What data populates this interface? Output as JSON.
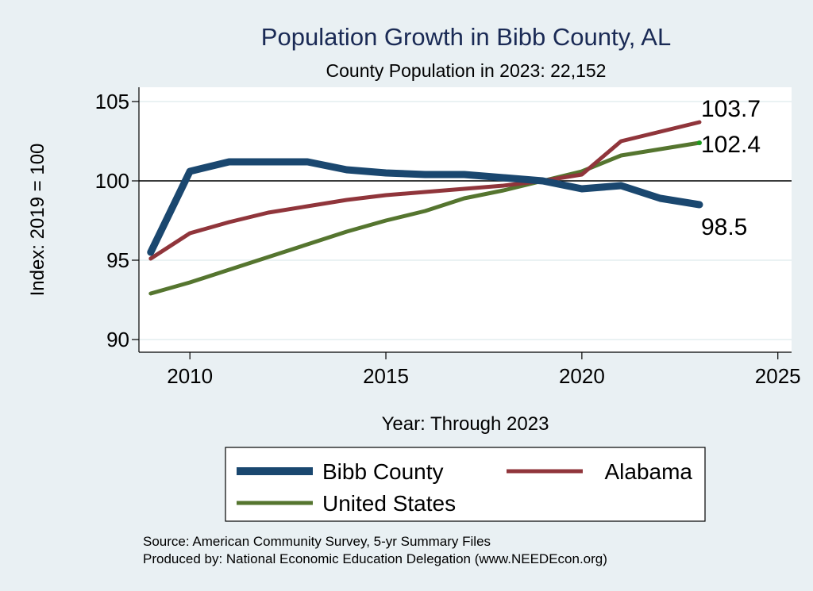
{
  "chart_data": {
    "type": "line",
    "title": "Population Growth in Bibb County, AL",
    "subtitle": "County Population in 2023: 22,152",
    "xlabel": "Year: Through 2023",
    "ylabel": "Index: 2019 = 100",
    "xlim": [
      2008.7,
      2025.35
    ],
    "ylim": [
      89.2,
      105.9
    ],
    "xticks": [
      2010,
      2015,
      2020,
      2025
    ],
    "xtick_labels": [
      "2010",
      "2015",
      "2020",
      "2025"
    ],
    "yticks": [
      90,
      95,
      100,
      105
    ],
    "ytick_labels": [
      "90",
      "95",
      "100",
      "105"
    ],
    "reference_line": 100,
    "grid": true,
    "x": [
      2009,
      2010,
      2011,
      2012,
      2013,
      2014,
      2015,
      2016,
      2017,
      2018,
      2019,
      2020,
      2021,
      2022,
      2023
    ],
    "series": [
      {
        "name": "Bibb  County",
        "color": "#1a476f",
        "end_label": "98.5",
        "values": [
          95.5,
          100.6,
          101.2,
          101.2,
          101.2,
          100.7,
          100.5,
          100.4,
          100.4,
          100.2,
          100.0,
          99.5,
          99.7,
          98.9,
          98.5
        ]
      },
      {
        "name": "Alabama",
        "color": "#90353b",
        "end_label": "103.7",
        "values": [
          95.1,
          96.7,
          97.4,
          98.0,
          98.4,
          98.8,
          99.1,
          99.3,
          99.5,
          99.7,
          100.0,
          100.4,
          102.5,
          103.1,
          103.7
        ]
      },
      {
        "name": "United States",
        "color": "#55752f",
        "end_label": "102.4",
        "values": [
          92.9,
          93.6,
          94.4,
          95.2,
          96.0,
          96.8,
          97.5,
          98.1,
          98.9,
          99.4,
          100.0,
          100.6,
          101.6,
          102.0,
          102.4
        ]
      }
    ],
    "legend_position": "bottom",
    "notes": [
      "Source: American Community Survey, 5-yr Summary Files",
      "Produced by: National Economic Education Delegation (www.NEEDEcon.org)"
    ]
  }
}
